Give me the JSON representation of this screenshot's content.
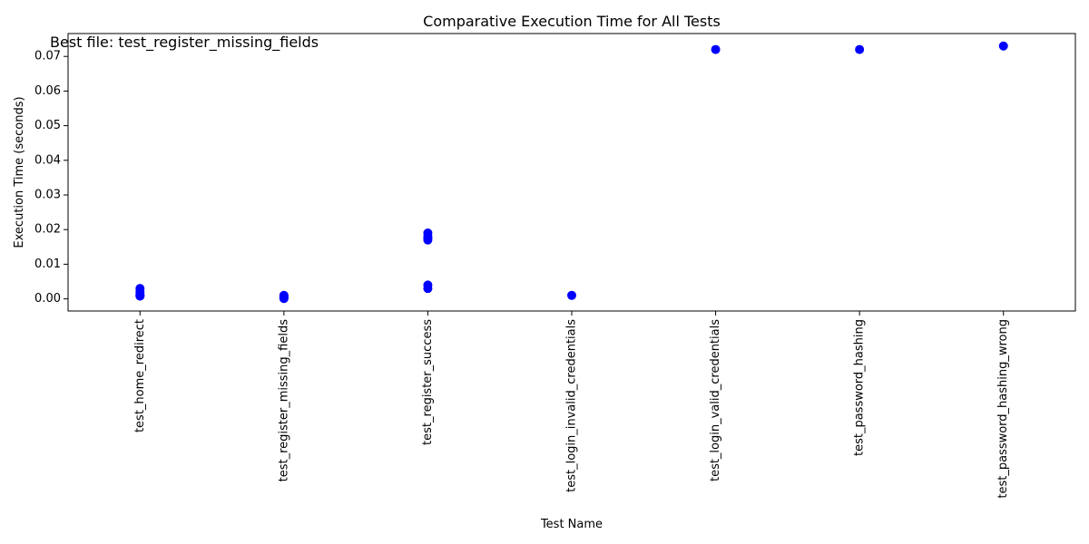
{
  "chart_data": {
    "type": "scatter",
    "title": "Comparative Execution Time for All Tests",
    "xlabel": "Test Name",
    "ylabel": "Execution Time (seconds)",
    "categories": [
      "test_home_redirect",
      "test_register_missing_fields",
      "test_register_success",
      "test_login_invalid_credentials",
      "test_login_valid_credentials",
      "test_password_hashing",
      "test_password_hashing_wrong"
    ],
    "points": [
      {
        "x": "test_home_redirect",
        "y": 0.003
      },
      {
        "x": "test_home_redirect",
        "y": 0.002
      },
      {
        "x": "test_home_redirect",
        "y": 0.0012
      },
      {
        "x": "test_home_redirect",
        "y": 0.001
      },
      {
        "x": "test_home_redirect",
        "y": 0.0008
      },
      {
        "x": "test_register_missing_fields",
        "y": 0.001
      },
      {
        "x": "test_register_missing_fields",
        "y": 0.0007
      },
      {
        "x": "test_register_missing_fields",
        "y": 0.0005
      },
      {
        "x": "test_register_missing_fields",
        "y": 0.0003
      },
      {
        "x": "test_register_missing_fields",
        "y": 0.0001
      },
      {
        "x": "test_register_success",
        "y": 0.019
      },
      {
        "x": "test_register_success",
        "y": 0.018
      },
      {
        "x": "test_register_success",
        "y": 0.0175
      },
      {
        "x": "test_register_success",
        "y": 0.017
      },
      {
        "x": "test_register_success",
        "y": 0.004
      },
      {
        "x": "test_register_success",
        "y": 0.003
      },
      {
        "x": "test_login_invalid_credentials",
        "y": 0.001
      },
      {
        "x": "test_login_valid_credentials",
        "y": 0.072
      },
      {
        "x": "test_password_hashing",
        "y": 0.072
      },
      {
        "x": "test_password_hashing_wrong",
        "y": 0.073
      }
    ],
    "marker_color": "#0000ff",
    "ylim": [
      -0.0035,
      0.0766
    ],
    "yticks": [
      0.0,
      0.01,
      0.02,
      0.03,
      0.04,
      0.05,
      0.06,
      0.07
    ],
    "ytick_labels": [
      "0.00",
      "0.01",
      "0.02",
      "0.03",
      "0.04",
      "0.05",
      "0.06",
      "0.07"
    ],
    "grid": false,
    "annotation": {
      "text": "Best file: test_register_missing_fields",
      "color": "#ff0000",
      "position": "top-left"
    }
  }
}
